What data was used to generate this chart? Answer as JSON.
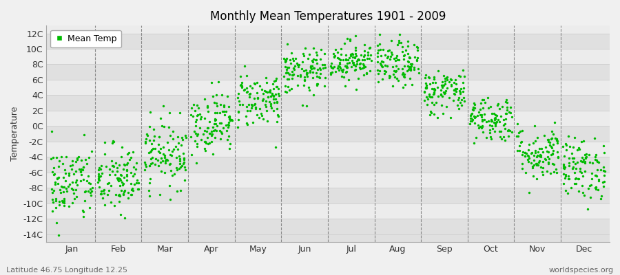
{
  "title": "Monthly Mean Temperatures 1901 - 2009",
  "ylabel": "Temperature",
  "xlabel_bottom_left": "Latitude 46.75 Longitude 12.25",
  "xlabel_bottom_right": "worldspecies.org",
  "legend_label": "Mean Temp",
  "marker_color": "#00bb00",
  "fig_bg_color": "#f0f0f0",
  "plot_bg_color": "#e8e8e8",
  "band_color_even": "#e0e0e0",
  "band_color_odd": "#ececec",
  "months": [
    "Jan",
    "Feb",
    "Mar",
    "Apr",
    "May",
    "Jun",
    "Jul",
    "Aug",
    "Sep",
    "Oct",
    "Nov",
    "Dec"
  ],
  "ylim": [
    -15,
    13
  ],
  "num_years": 109,
  "seed": 42,
  "monthly_means": [
    -7.5,
    -7.0,
    -3.5,
    0.5,
    3.5,
    7.0,
    8.5,
    8.0,
    4.5,
    1.0,
    -3.5,
    -5.5
  ],
  "monthly_stds": [
    2.5,
    2.3,
    2.2,
    2.0,
    1.8,
    1.5,
    1.3,
    1.5,
    1.5,
    1.5,
    1.8,
    2.0
  ],
  "yticks": [
    -14,
    -12,
    -10,
    -8,
    -6,
    -4,
    -2,
    0,
    2,
    4,
    6,
    8,
    10,
    12
  ],
  "dashed_line_color": "#888888",
  "grid_color": "#cccccc"
}
